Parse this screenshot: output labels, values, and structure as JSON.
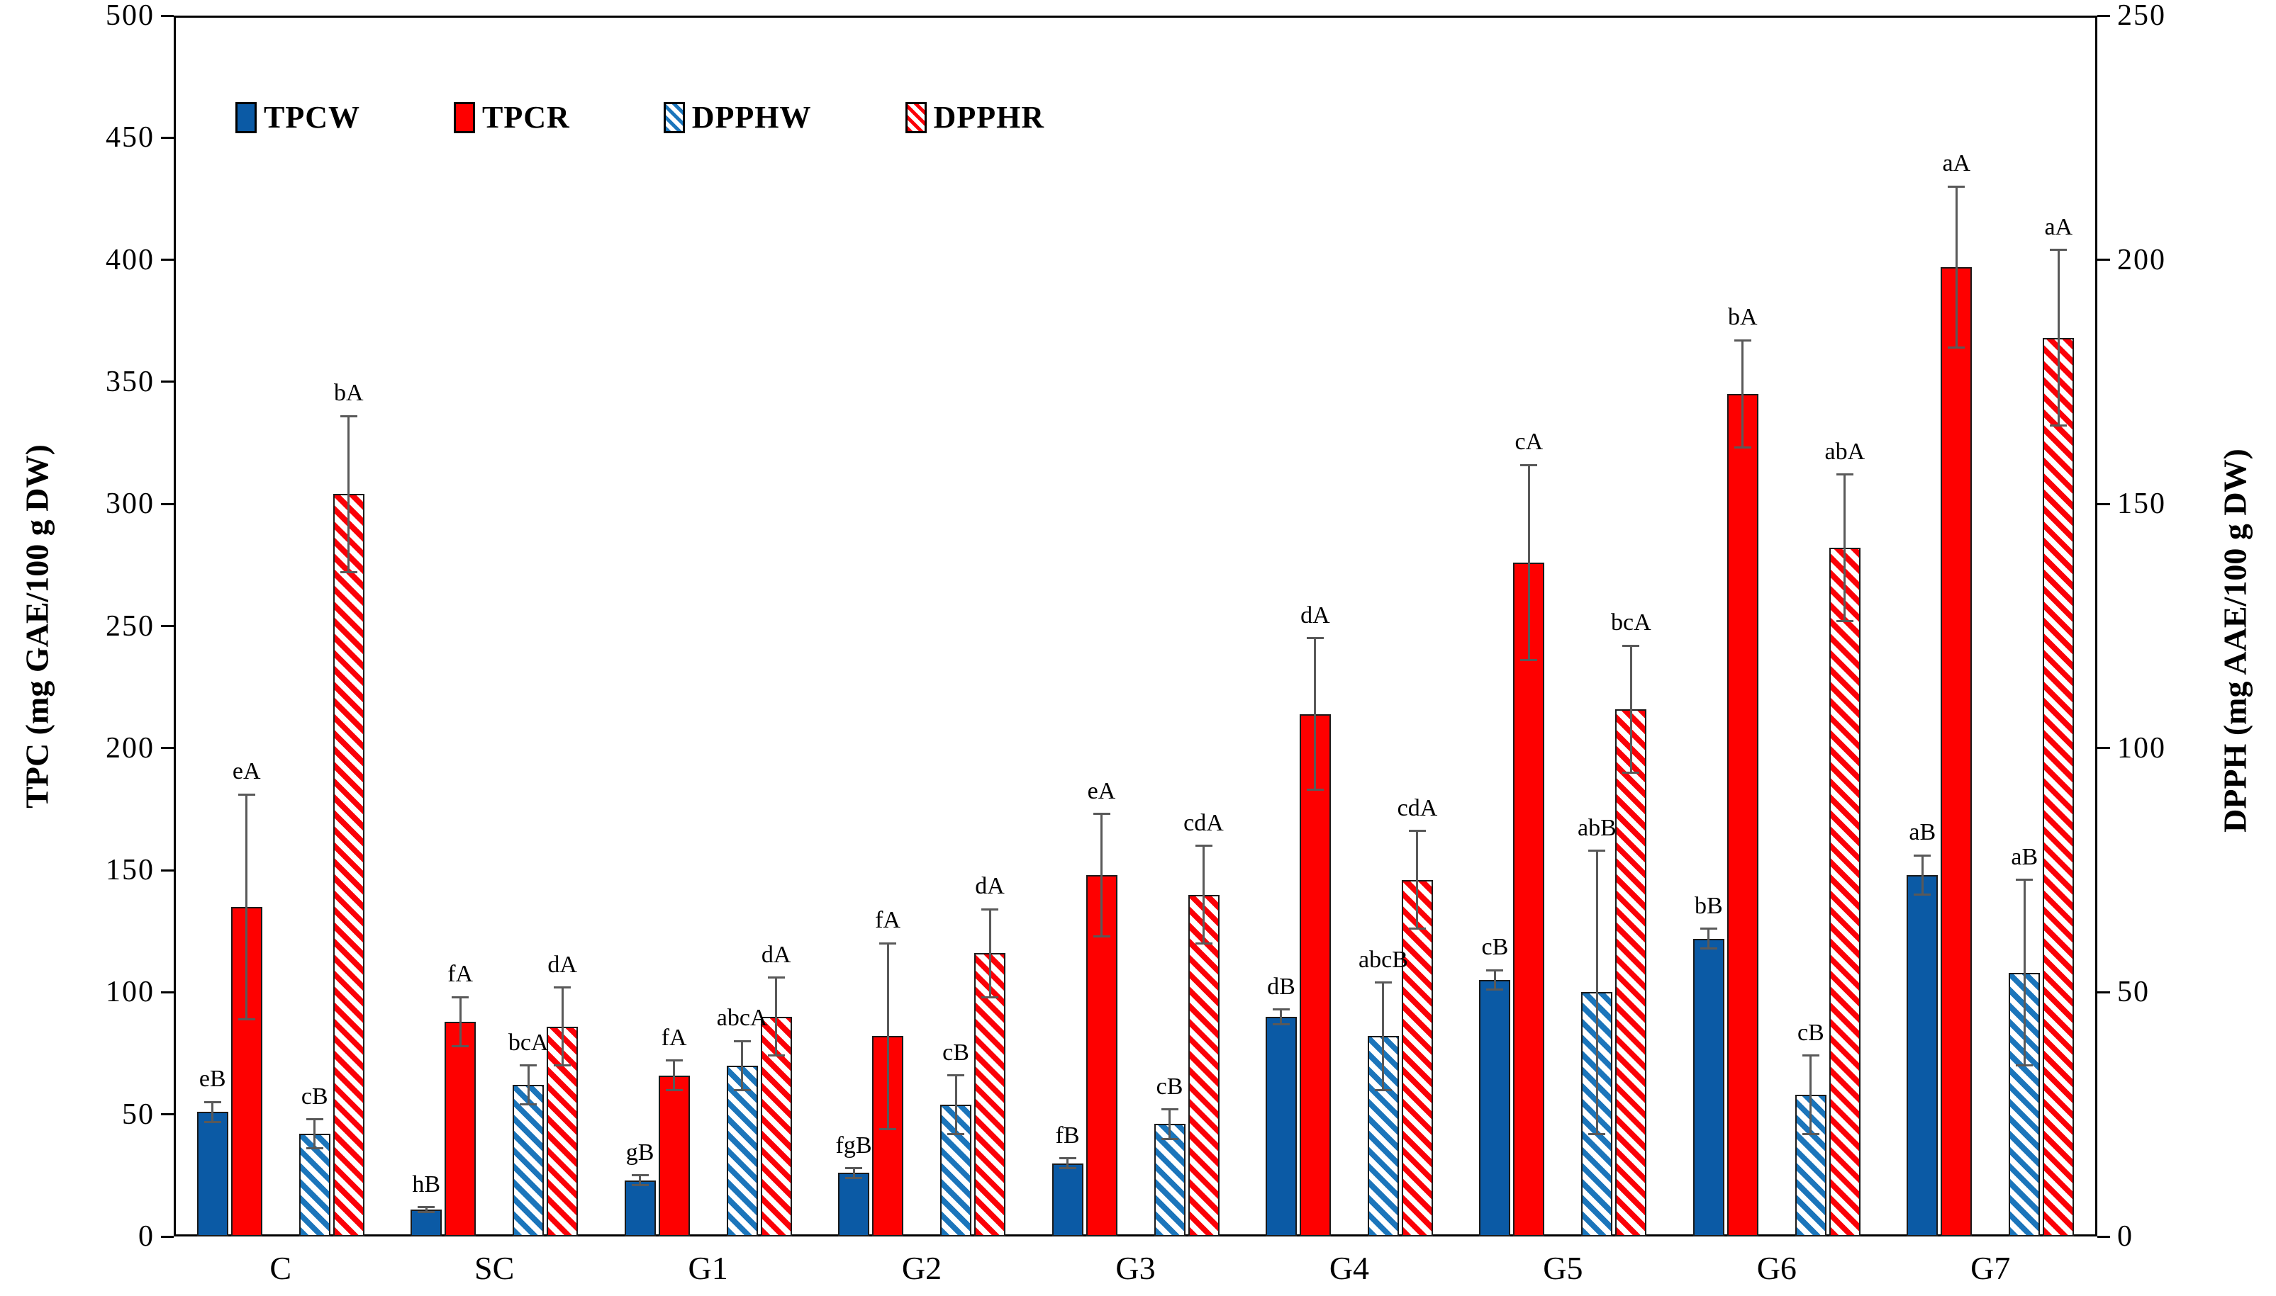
{
  "chart_data": {
    "type": "bar",
    "title": "",
    "categories": [
      "C",
      "SC",
      "G1",
      "G2",
      "G3",
      "G4",
      "G5",
      "G6",
      "G7"
    ],
    "left_axis": {
      "label": "TPC (mg GAE/100 g DW)",
      "min": 0,
      "max": 500,
      "step": 50
    },
    "right_axis": {
      "label": "DPPH (mg AAE/100 g DW)",
      "min": 0,
      "max": 250,
      "step": 50
    },
    "grid": false,
    "legend_position": "top-left-inside",
    "colors": {
      "error_bar": "#595959",
      "bar_outline": "#1a1a1a",
      "axis": "#000000"
    },
    "series": [
      {
        "name": "TPCW",
        "axis": "left",
        "style": "solid",
        "color": "#0b5aa5",
        "values": [
          51,
          11,
          23,
          26,
          30,
          90,
          105,
          122,
          148
        ],
        "errors": [
          4,
          1,
          2,
          2,
          2,
          3,
          4,
          4,
          8
        ],
        "labels": [
          "eB",
          "hB",
          "gB",
          "fgB",
          "fB",
          "dB",
          "cB",
          "bB",
          "aB"
        ]
      },
      {
        "name": "TPCR",
        "axis": "left",
        "style": "solid",
        "color": "#fe0000",
        "values": [
          135,
          88,
          66,
          82,
          148,
          214,
          276,
          345,
          397
        ],
        "errors": [
          46,
          10,
          6,
          38,
          25,
          31,
          40,
          22,
          33
        ],
        "labels": [
          "eA",
          "fA",
          "fA",
          "fA",
          "eA",
          "dA",
          "cA",
          "bA",
          "aA"
        ]
      },
      {
        "name": "DPPHW",
        "axis": "right",
        "style": "hatched",
        "color": "#1b75bb",
        "values": [
          21,
          31,
          35,
          27,
          23,
          41,
          50,
          29,
          54
        ],
        "errors": [
          3,
          4,
          5,
          6,
          3,
          11,
          29,
          8,
          19
        ],
        "labels": [
          "cB",
          "bcA",
          "abcA",
          "cB",
          "cB",
          "abcB",
          "abB",
          "cB",
          "aB"
        ]
      },
      {
        "name": "DPPHR",
        "axis": "right",
        "style": "hatched",
        "color": "#fb0007",
        "values": [
          152,
          43,
          45,
          58,
          70,
          73,
          108,
          141,
          184
        ],
        "errors": [
          16,
          8,
          8,
          9,
          10,
          10,
          13,
          15,
          18
        ],
        "labels": [
          "bA",
          "dA",
          "dA",
          "dA",
          "cdA",
          "cdA",
          "bcA",
          "abA",
          "aA"
        ]
      }
    ]
  }
}
